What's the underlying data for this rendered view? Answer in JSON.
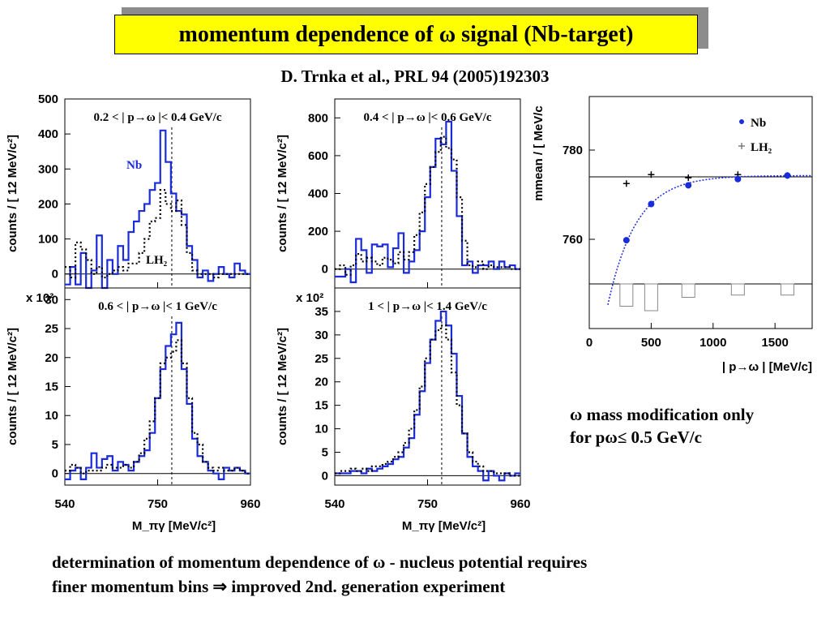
{
  "title": "momentum dependence of ω signal (Nb-target)",
  "citation": "D. Trnka et al., PRL 94 (2005)192303",
  "note_right": [
    "ω mass modification only",
    "for pω≤ 0.5 GeV/c"
  ],
  "note_bottom": [
    "determination of momentum dependence of ω - nucleus potential requires",
    "finer momentum  bins ⇒ improved 2nd. generation experiment"
  ],
  "colors": {
    "nb": "#1a2bd9",
    "lh2": "#000000",
    "title_bg": "#ffff00",
    "fit": "#1a2bd9"
  },
  "chart_data": [
    {
      "type": "line",
      "panel_label": "0.2 < | p_ω |< 0.4 GeV/c",
      "ylabel": "counts / [ 12 MeV/c²]",
      "xlabel": "M_πγ [MeV/c²]",
      "xlim": [
        540,
        960
      ],
      "ylim": [
        -40,
        500
      ],
      "yticks": [
        0,
        100,
        200,
        300,
        400,
        500
      ],
      "xticks": [
        540,
        750,
        960
      ],
      "y_multiplier": "",
      "annotations": [
        "Nb",
        "LH₂"
      ],
      "mass_marker": 782,
      "series": [
        {
          "name": "Nb",
          "style": "histogram",
          "x": [
            540,
            552,
            564,
            576,
            588,
            600,
            612,
            624,
            636,
            648,
            660,
            672,
            684,
            696,
            708,
            720,
            732,
            744,
            756,
            768,
            780,
            792,
            804,
            816,
            828,
            840,
            852,
            864,
            876,
            888,
            900,
            912,
            924,
            936,
            948
          ],
          "values": [
            -30,
            20,
            -30,
            60,
            -40,
            10,
            110,
            -40,
            40,
            0,
            80,
            40,
            120,
            150,
            180,
            200,
            240,
            260,
            410,
            320,
            230,
            180,
            170,
            80,
            40,
            -10,
            10,
            -20,
            0,
            20,
            0,
            -10,
            30,
            10,
            0
          ]
        },
        {
          "name": "LH2",
          "style": "dotted-histogram",
          "x": [
            540,
            552,
            564,
            576,
            588,
            600,
            612,
            624,
            636,
            648,
            660,
            672,
            684,
            696,
            708,
            720,
            732,
            744,
            756,
            768,
            780,
            792,
            804,
            816,
            828,
            840,
            852,
            864,
            876,
            888,
            900,
            912,
            924,
            936,
            948
          ],
          "values": [
            20,
            -10,
            90,
            70,
            40,
            0,
            20,
            -10,
            0,
            10,
            20,
            10,
            30,
            30,
            60,
            100,
            150,
            160,
            240,
            200,
            180,
            210,
            140,
            60,
            10,
            0,
            0,
            0,
            -10,
            0,
            0,
            0,
            0,
            0,
            0
          ]
        }
      ]
    },
    {
      "type": "line",
      "panel_label": "0.4 < | p_ω |< 0.6 GeV/c",
      "ylabel": "counts / [ 12 MeV/c²]",
      "xlabel": "M_πγ [MeV/c²]",
      "xlim": [
        540,
        960
      ],
      "ylim": [
        -100,
        900
      ],
      "yticks": [
        0,
        200,
        400,
        600,
        800
      ],
      "xticks": [
        540,
        750,
        960
      ],
      "y_multiplier": "",
      "annotations": [],
      "mass_marker": 782,
      "series": [
        {
          "name": "Nb",
          "style": "histogram",
          "x": [
            540,
            552,
            564,
            576,
            588,
            600,
            612,
            624,
            636,
            648,
            660,
            672,
            684,
            696,
            708,
            720,
            732,
            744,
            756,
            768,
            780,
            792,
            804,
            816,
            828,
            840,
            852,
            864,
            876,
            888,
            900,
            912,
            924,
            936,
            948
          ],
          "values": [
            -40,
            -40,
            0,
            -70,
            160,
            100,
            -20,
            130,
            120,
            130,
            10,
            110,
            190,
            -20,
            40,
            100,
            200,
            380,
            540,
            690,
            660,
            780,
            520,
            280,
            20,
            40,
            -20,
            20,
            20,
            40,
            0,
            40,
            10,
            20,
            0
          ]
        },
        {
          "name": "LH2",
          "style": "dotted-histogram",
          "x": [
            540,
            552,
            564,
            576,
            588,
            600,
            612,
            624,
            636,
            648,
            660,
            672,
            684,
            696,
            708,
            720,
            732,
            744,
            756,
            768,
            780,
            792,
            804,
            816,
            828,
            840,
            852,
            864,
            876,
            888,
            900,
            912,
            924,
            936,
            948
          ],
          "values": [
            0,
            20,
            -30,
            20,
            80,
            40,
            60,
            40,
            20,
            60,
            50,
            30,
            90,
            50,
            90,
            180,
            300,
            450,
            540,
            620,
            700,
            640,
            580,
            380,
            150,
            20,
            10,
            40,
            0,
            20,
            10,
            10,
            10,
            0,
            0
          ]
        }
      ]
    },
    {
      "type": "line",
      "panel_label": "0.6 < | p_ω |< 1 GeV/c",
      "ylabel": "counts / [ 12 MeV/c²]",
      "xlabel": "M_πγ [MeV/c²]",
      "xlim": [
        540,
        960
      ],
      "ylim": [
        -2,
        32
      ],
      "yticks": [
        0,
        5,
        10,
        15,
        20,
        25,
        30
      ],
      "xticks": [
        540,
        750,
        960
      ],
      "y_multiplier": "x 10²",
      "annotations": [],
      "mass_marker": 782,
      "series": [
        {
          "name": "Nb",
          "style": "histogram",
          "x": [
            540,
            552,
            564,
            576,
            588,
            600,
            612,
            624,
            636,
            648,
            660,
            672,
            684,
            696,
            708,
            720,
            732,
            744,
            756,
            768,
            780,
            792,
            804,
            816,
            828,
            840,
            852,
            864,
            876,
            888,
            900,
            912,
            924,
            936,
            948
          ],
          "values": [
            -1,
            0.5,
            1,
            -1,
            1,
            3.5,
            1,
            2.5,
            3,
            0.5,
            2,
            1.5,
            0.5,
            2,
            3,
            4,
            7,
            13,
            18,
            22,
            24,
            26,
            18,
            12,
            6,
            3,
            2,
            0.5,
            0,
            -1,
            1,
            0.5,
            1,
            0.5,
            0
          ]
        },
        {
          "name": "LH2",
          "style": "dotted-histogram",
          "x": [
            540,
            552,
            564,
            576,
            588,
            600,
            612,
            624,
            636,
            648,
            660,
            672,
            684,
            696,
            708,
            720,
            732,
            744,
            756,
            768,
            780,
            792,
            804,
            816,
            828,
            840,
            852,
            864,
            876,
            888,
            900,
            912,
            924,
            936,
            948
          ],
          "values": [
            0.5,
            1.5,
            1,
            0,
            0.5,
            0.5,
            0.5,
            1,
            1.5,
            1,
            1,
            1.5,
            1,
            2,
            3.5,
            6,
            9,
            13,
            19,
            20,
            21,
            23,
            19,
            13,
            7,
            5,
            2,
            1,
            0.5,
            1,
            0.5,
            0.5,
            1,
            0.5,
            0
          ]
        }
      ]
    },
    {
      "type": "line",
      "panel_label": "1 < | p_ω |< 1.4 GeV/c",
      "ylabel": "counts / [ 12 MeV/c²]",
      "xlabel": "M_πγ [MeV/c²]",
      "xlim": [
        540,
        960
      ],
      "ylim": [
        -2,
        40
      ],
      "yticks": [
        0,
        5,
        10,
        15,
        20,
        25,
        30,
        35
      ],
      "xticks": [
        540,
        750,
        960
      ],
      "y_multiplier": "x 10²",
      "annotations": [],
      "mass_marker": 782,
      "series": [
        {
          "name": "Nb",
          "style": "histogram",
          "x": [
            540,
            552,
            564,
            576,
            588,
            600,
            612,
            624,
            636,
            648,
            660,
            672,
            684,
            696,
            708,
            720,
            732,
            744,
            756,
            768,
            780,
            792,
            804,
            816,
            828,
            840,
            852,
            864,
            876,
            888,
            900,
            912,
            924,
            936,
            948
          ],
          "values": [
            0.5,
            0.5,
            0.5,
            1,
            1,
            0.5,
            1.5,
            1,
            1.5,
            2,
            2.5,
            3.5,
            4,
            6,
            8,
            13,
            18,
            24,
            29,
            33,
            35,
            32,
            26,
            17,
            9,
            4,
            2,
            1,
            -1,
            1,
            0,
            -1,
            0.5,
            0,
            0.5
          ]
        },
        {
          "name": "LH2",
          "style": "dotted-histogram",
          "x": [
            540,
            552,
            564,
            576,
            588,
            600,
            612,
            624,
            636,
            648,
            660,
            672,
            684,
            696,
            708,
            720,
            732,
            744,
            756,
            768,
            780,
            792,
            804,
            816,
            828,
            840,
            852,
            864,
            876,
            888,
            900,
            912,
            924,
            936,
            948
          ],
          "values": [
            0.5,
            1,
            1,
            1.5,
            1,
            1.5,
            1,
            2,
            2,
            2.5,
            3,
            4,
            5,
            7,
            10,
            14,
            19,
            25,
            29,
            31,
            32,
            29,
            22,
            15,
            9,
            5,
            3,
            2,
            1,
            1,
            0.5,
            0.5,
            0.5,
            0,
            0
          ]
        }
      ]
    },
    {
      "type": "scatter",
      "panel_label": "",
      "ylabel": "m_mean / [ MeV/c",
      "xlabel": "| p_ω | [MeV/c]",
      "xlim": [
        0,
        1800
      ],
      "ylim": [
        740,
        792
      ],
      "yticks": [
        760,
        780
      ],
      "xticks": [
        0,
        500,
        1000,
        1500
      ],
      "reference_line": 774,
      "legend_position": "top-right",
      "series": [
        {
          "name": "Nb",
          "x": [
            300,
            500,
            800,
            1200,
            1600
          ],
          "values": [
            759.8,
            767.9,
            772.1,
            773.5,
            774.3
          ]
        },
        {
          "name": "LH₂",
          "x": [
            300,
            500,
            800,
            1200,
            1600
          ],
          "values": [
            772.5,
            774.5,
            773.8,
            774.5,
            774.3
          ]
        }
      ],
      "lower_boxes": {
        "x": [
          300,
          500,
          800,
          1200,
          1600
        ],
        "depth": [
          5,
          6,
          3,
          2.5,
          2.5
        ]
      }
    }
  ]
}
